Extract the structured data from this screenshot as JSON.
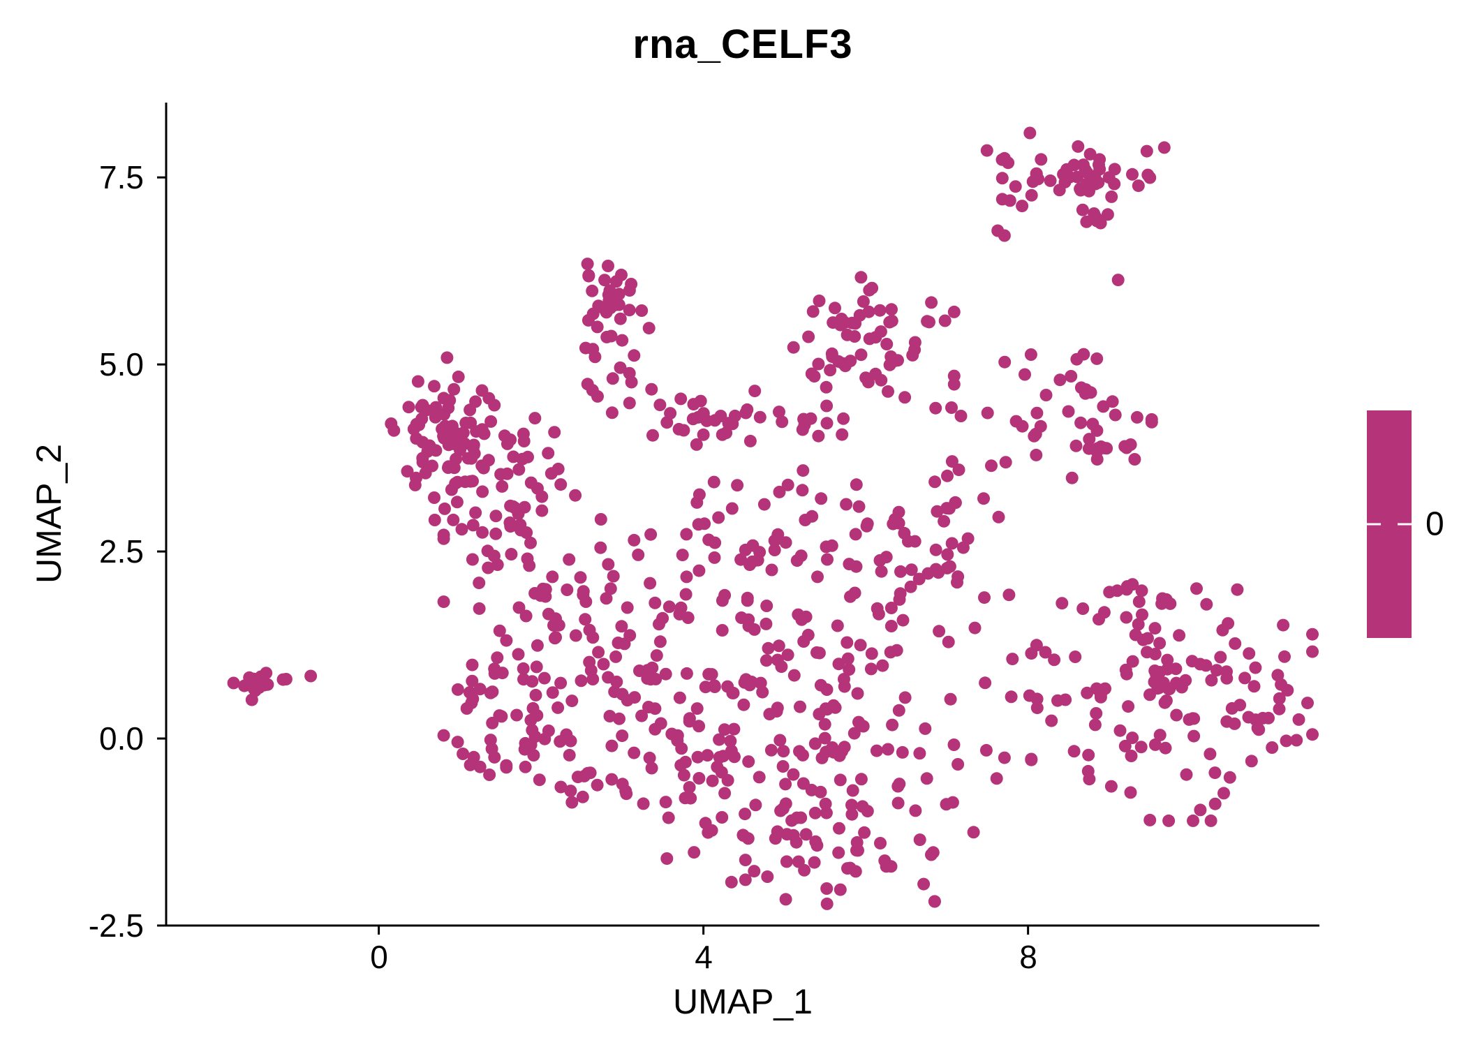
{
  "chart_data": {
    "type": "scatter",
    "title": "rna_CELF3",
    "xlabel": "UMAP_1",
    "ylabel": "UMAP_2",
    "xticks": [
      {
        "v": 0,
        "label": "0"
      },
      {
        "v": 4,
        "label": "4"
      },
      {
        "v": 8,
        "label": "8"
      }
    ],
    "yticks": [
      {
        "v": 7.5,
        "label": "7.5"
      },
      {
        "v": 5.0,
        "label": "5.0"
      },
      {
        "v": 2.5,
        "label": "2.5"
      },
      {
        "v": 0.0,
        "label": "0.0"
      },
      {
        "v": -2.5,
        "label": "-2.5"
      }
    ],
    "xlim": [
      -2.62,
      11.59
    ],
    "ylim": [
      -2.5,
      8.5
    ],
    "grid": false,
    "background_color": "#FFFFFF",
    "axis_color": "#000000",
    "point_color": "#B53378",
    "point_radius": 9,
    "legend": {
      "position": "right",
      "label": "0",
      "colorbar_color": "#B53378"
    },
    "clusters": [
      {
        "cx": -1.55,
        "cy": 0.68,
        "sx": 0.16,
        "sy": 0.1,
        "n": 16
      },
      {
        "cx": -1.15,
        "cy": 0.76,
        "sx": 0.04,
        "sy": 0.04,
        "n": 2
      },
      {
        "cx": -0.82,
        "cy": 0.82,
        "sx": 0.02,
        "sy": 0.02,
        "n": 1
      },
      {
        "cx": 1.0,
        "cy": 4.0,
        "sx": 0.42,
        "sy": 0.5,
        "n": 85
      },
      {
        "cx": 1.35,
        "cy": 2.85,
        "sx": 0.3,
        "sy": 0.35,
        "n": 25
      },
      {
        "cx": 2.0,
        "cy": 3.6,
        "sx": 0.3,
        "sy": 0.4,
        "n": 18
      },
      {
        "cx": 1.9,
        "cy": 1.9,
        "sx": 0.5,
        "sy": 0.45,
        "n": 28
      },
      {
        "cx": 1.9,
        "cy": 0.1,
        "sx": 0.5,
        "sy": 0.55,
        "n": 55
      },
      {
        "cx": 1.35,
        "cy": 0.8,
        "sx": 0.25,
        "sy": 0.3,
        "n": 15
      },
      {
        "cx": 2.9,
        "cy": 5.75,
        "sx": 0.28,
        "sy": 0.3,
        "n": 34
      },
      {
        "cx": 2.75,
        "cy": 4.9,
        "sx": 0.2,
        "sy": 0.25,
        "n": 6
      },
      {
        "cx": 6.1,
        "cy": 5.4,
        "sx": 0.45,
        "sy": 0.42,
        "n": 55
      },
      {
        "cx": 5.3,
        "cy": 5.0,
        "sx": 0.15,
        "sy": 0.15,
        "n": 4
      },
      {
        "cx": 8.6,
        "cy": 7.5,
        "sx": 0.55,
        "sy": 0.27,
        "n": 55
      },
      {
        "cx": 7.6,
        "cy": 6.75,
        "sx": 0.05,
        "sy": 0.05,
        "n": 2
      },
      {
        "cx": 9.15,
        "cy": 6.1,
        "sx": 0.03,
        "sy": 0.03,
        "n": 1
      },
      {
        "cx": 8.9,
        "cy": 6.9,
        "sx": 0.15,
        "sy": 0.12,
        "n": 4
      },
      {
        "cx": 8.6,
        "cy": 4.3,
        "sx": 0.42,
        "sy": 0.38,
        "n": 40
      },
      {
        "cx": 7.9,
        "cy": 4.9,
        "sx": 0.12,
        "sy": 0.3,
        "n": 4
      },
      {
        "cx": 4.0,
        "cy": 4.3,
        "sx": 1.0,
        "sy": 0.18,
        "n": 42
      },
      {
        "cx": 4.6,
        "cy": 1.5,
        "sx": 1.1,
        "sy": 0.8,
        "n": 110
      },
      {
        "cx": 5.4,
        "cy": -0.5,
        "sx": 1.05,
        "sy": 0.65,
        "n": 95
      },
      {
        "cx": 3.6,
        "cy": 0.1,
        "sx": 0.55,
        "sy": 0.75,
        "n": 50
      },
      {
        "cx": 6.8,
        "cy": 2.3,
        "sx": 0.45,
        "sy": 0.55,
        "n": 40
      },
      {
        "cx": 5.2,
        "cy": -1.55,
        "sx": 0.75,
        "sy": 0.3,
        "n": 35
      },
      {
        "cx": 4.9,
        "cy": 2.9,
        "sx": 0.9,
        "sy": 0.35,
        "n": 30
      },
      {
        "cx": 2.7,
        "cy": 1.3,
        "sx": 0.4,
        "sy": 0.5,
        "n": 20
      },
      {
        "cx": 9.8,
        "cy": 0.55,
        "sx": 0.8,
        "sy": 0.75,
        "n": 115
      },
      {
        "cx": 11.0,
        "cy": 0.1,
        "sx": 0.3,
        "sy": 0.35,
        "n": 12
      },
      {
        "cx": 9.6,
        "cy": 1.9,
        "sx": 0.4,
        "sy": 0.2,
        "n": 10
      },
      {
        "cx": 7.9,
        "cy": 0.9,
        "sx": 0.25,
        "sy": 0.45,
        "n": 8
      },
      {
        "cx": 7.3,
        "cy": 3.3,
        "sx": 0.25,
        "sy": 0.4,
        "n": 6
      },
      {
        "cx": 7.2,
        "cy": 4.35,
        "sx": 0.3,
        "sy": 0.1,
        "n": 4
      }
    ]
  }
}
